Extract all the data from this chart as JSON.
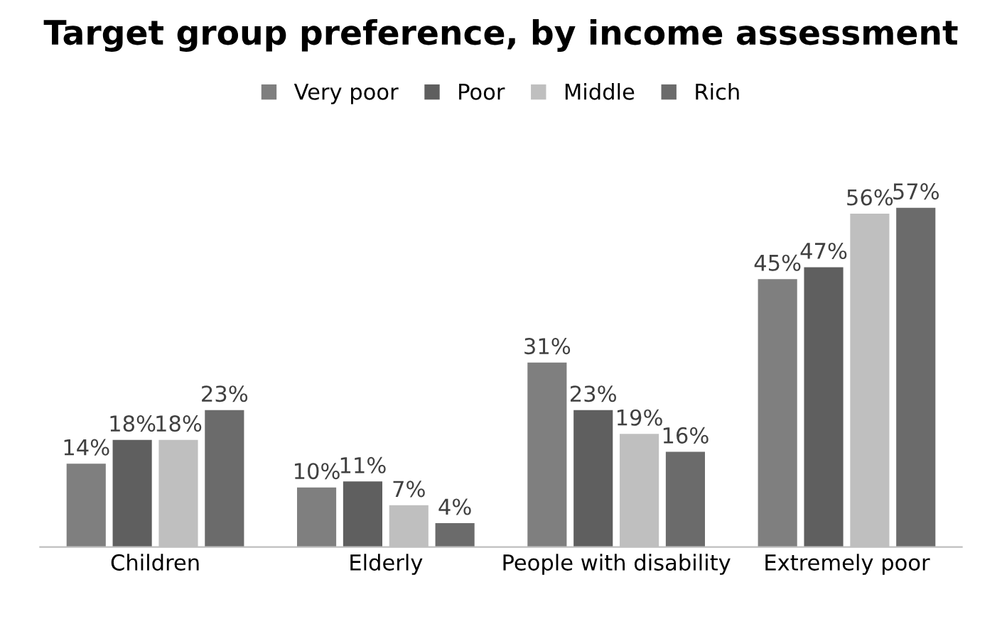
{
  "chart_data": {
    "type": "bar",
    "title": "Target group preference, by income assessment",
    "categories": [
      "Children",
      "Elderly",
      "People with disability",
      "Extremely poor"
    ],
    "series": [
      {
        "name": "Very poor",
        "color": "#7f7f7f",
        "values": [
          14,
          10,
          31,
          45
        ],
        "value_labels": [
          "14%",
          "10%",
          "31%",
          "45%"
        ]
      },
      {
        "name": "Poor",
        "color": "#5f5f5f",
        "values": [
          18,
          11,
          23,
          47
        ],
        "value_labels": [
          "18%",
          "11%",
          "23%",
          "47%"
        ]
      },
      {
        "name": "Middle",
        "color": "#bfbfbf",
        "values": [
          18,
          7,
          19,
          56
        ],
        "value_labels": [
          "18%",
          "7%",
          "19%",
          "56%"
        ]
      },
      {
        "name": "Rich",
        "color": "#6b6b6b",
        "values": [
          23,
          4,
          16,
          57
        ],
        "value_labels": [
          "23%",
          "4%",
          "16%",
          "57%"
        ]
      }
    ],
    "legend": "top"
  }
}
